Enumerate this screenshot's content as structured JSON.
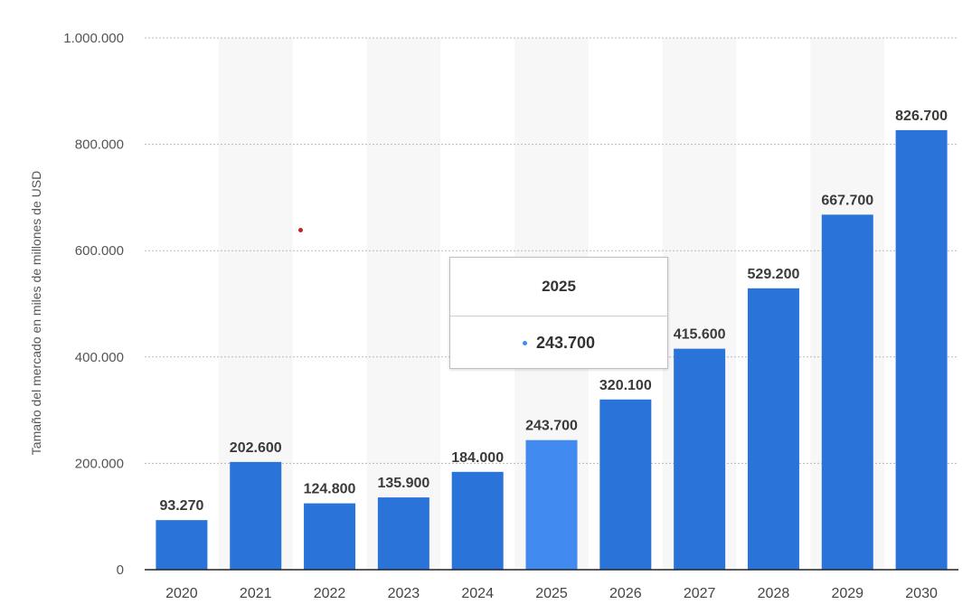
{
  "chart_data": {
    "type": "bar",
    "categories": [
      "2020",
      "2021",
      "2022",
      "2023",
      "2024",
      "2025",
      "2026",
      "2027",
      "2028",
      "2029",
      "2030"
    ],
    "values": [
      93270,
      202600,
      124800,
      135900,
      184000,
      243700,
      320100,
      415600,
      529200,
      667700,
      826700
    ],
    "value_labels": [
      "93.270",
      "202.600",
      "124.800",
      "135.900",
      "184.000",
      "243.700",
      "320.100",
      "415.600",
      "529.200",
      "667.700",
      "826.700"
    ],
    "highlight_index": 5,
    "ylabel": "Tamaño del mercado en miles de millones de USD",
    "xlabel": "",
    "ylim": [
      0,
      1000000
    ],
    "yticks": [
      0,
      200000,
      400000,
      600000,
      800000,
      1000000
    ],
    "ytick_labels": [
      "0",
      "200.000",
      "400.000",
      "600.000",
      "800.000",
      "1.000.000"
    ],
    "grid": true,
    "colors": {
      "bar": "#2a74d9",
      "highlight": "#418af0",
      "band": "#f7f7f7",
      "grid": "#b8b8b8",
      "marker": "#c0281c"
    }
  },
  "tooltip": {
    "title": "2025",
    "value": "243.700"
  }
}
